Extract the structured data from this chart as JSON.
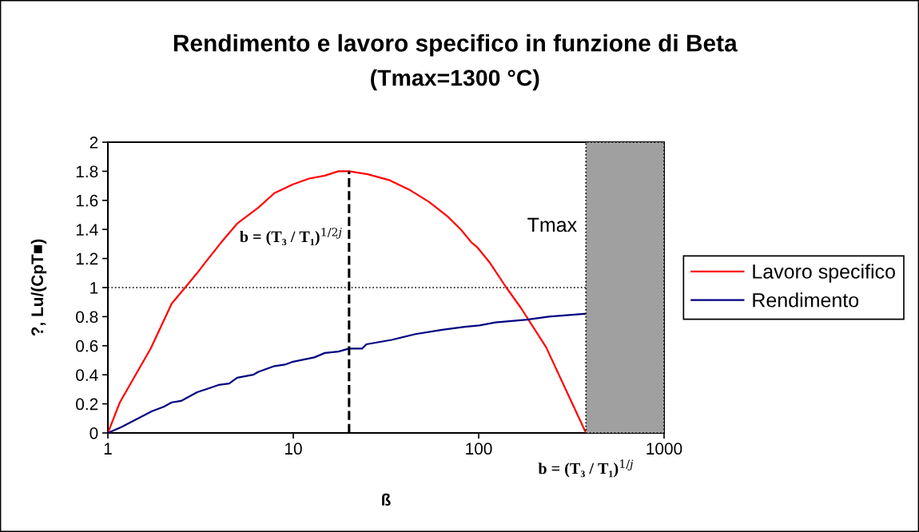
{
  "chart_data": {
    "type": "line",
    "title": "Rendimento e lavoro specifico in funzione di Beta",
    "subtitle": "(Tmax=1300 °C)",
    "xlabel": "ß",
    "ylabel": "?, Lu/(CpT■)",
    "log": "x",
    "xlim": [
      1,
      1000
    ],
    "xticks": [
      1,
      10,
      100,
      1000
    ],
    "ylim": [
      0,
      2
    ],
    "yticks": [
      0,
      0.2,
      0.4,
      0.6,
      0.8,
      1,
      1.2,
      1.4,
      1.6,
      1.8,
      2
    ],
    "grid": false,
    "legend": "right",
    "marker": "none",
    "line_style": "solid",
    "series": [
      {
        "name": "Lavoro specifico",
        "color": "#ff0000",
        "x": [
          1,
          1.16,
          1.7,
          2.21,
          2.61,
          3.03,
          3.34,
          4.08,
          4.98,
          6.48,
          7.91,
          9.97,
          12.2,
          14.8,
          17.5,
          20,
          25.2,
          32.8,
          42.7,
          53.9,
          67.9,
          80.1,
          91.5,
          97.8,
          115,
          141,
          169,
          231,
          379
        ],
        "values": [
          0,
          0.21,
          0.58,
          0.89,
          1.0,
          1.1,
          1.17,
          1.31,
          1.44,
          1.55,
          1.65,
          1.71,
          1.75,
          1.77,
          1.8,
          1.8,
          1.78,
          1.74,
          1.67,
          1.59,
          1.49,
          1.4,
          1.31,
          1.28,
          1.17,
          1.0,
          0.86,
          0.59,
          0
        ]
      },
      {
        "name": "Rendimento",
        "color": "#000080",
        "x": [
          1,
          1.18,
          1.73,
          2.0,
          2.21,
          2.48,
          3.03,
          3.95,
          4.51,
          4.98,
          6.07,
          6.48,
          7.91,
          9.02,
          9.97,
          13,
          14.8,
          17.5,
          20,
          23.5,
          24.8,
          33.9,
          45.6,
          63.5,
          84.2,
          101,
          123,
          183,
          239,
          379
        ],
        "values": [
          0,
          0.04,
          0.15,
          0.18,
          0.21,
          0.22,
          0.28,
          0.33,
          0.34,
          0.38,
          0.4,
          0.42,
          0.46,
          0.47,
          0.49,
          0.52,
          0.55,
          0.56,
          0.58,
          0.58,
          0.61,
          0.64,
          0.68,
          0.71,
          0.73,
          0.74,
          0.76,
          0.78,
          0.8,
          0.82
        ]
      },
      {
        "type": "line",
        "color": "#000000",
        "line_style": "dashed",
        "x": [
          20,
          20
        ],
        "values": [
          0,
          1.8
        ]
      }
    ],
    "ref_lines": [
      {
        "axis": "y",
        "value": 1,
        "color": "#000000",
        "line_style": "dotted"
      }
    ],
    "bands": [
      {
        "axis": "x",
        "from": 379,
        "to": 1000,
        "label": "Tmax",
        "color": "#a0a0a0"
      }
    ],
    "annotations": [
      {
        "text": "b = (T₃ / T₁)$^{1/2j}$",
        "x": 20,
        "y": 1.35
      },
      {
        "text": "b = (T₃ / T₁)$^{1/j}$",
        "x": 379,
        "y": 0
      }
    ]
  }
}
